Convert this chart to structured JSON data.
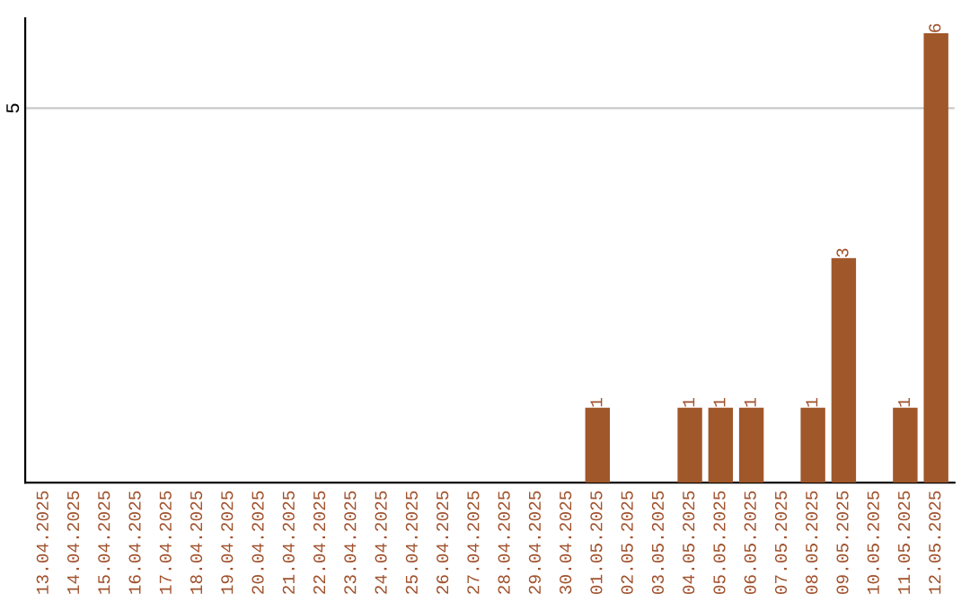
{
  "chart_data": {
    "type": "bar",
    "categories": [
      "13.04.2025",
      "14.04.2025",
      "15.04.2025",
      "16.04.2025",
      "17.04.2025",
      "18.04.2025",
      "19.04.2025",
      "20.04.2025",
      "21.04.2025",
      "22.04.2025",
      "23.04.2025",
      "24.04.2025",
      "25.04.2025",
      "26.04.2025",
      "27.04.2025",
      "28.04.2025",
      "29.04.2025",
      "30.04.2025",
      "01.05.2025",
      "02.05.2025",
      "03.05.2025",
      "04.05.2025",
      "05.05.2025",
      "06.05.2025",
      "07.05.2025",
      "08.05.2025",
      "09.05.2025",
      "10.05.2025",
      "11.05.2025",
      "12.05.2025"
    ],
    "values": [
      null,
      null,
      null,
      null,
      null,
      null,
      null,
      null,
      null,
      null,
      null,
      null,
      null,
      null,
      null,
      null,
      null,
      null,
      1,
      null,
      null,
      1,
      1,
      1,
      null,
      1,
      3,
      null,
      1,
      6
    ],
    "data_labels": true,
    "color": "#a0572a",
    "ylim": [
      0,
      6.2
    ],
    "yticks": [
      5
    ],
    "grid": "y"
  }
}
